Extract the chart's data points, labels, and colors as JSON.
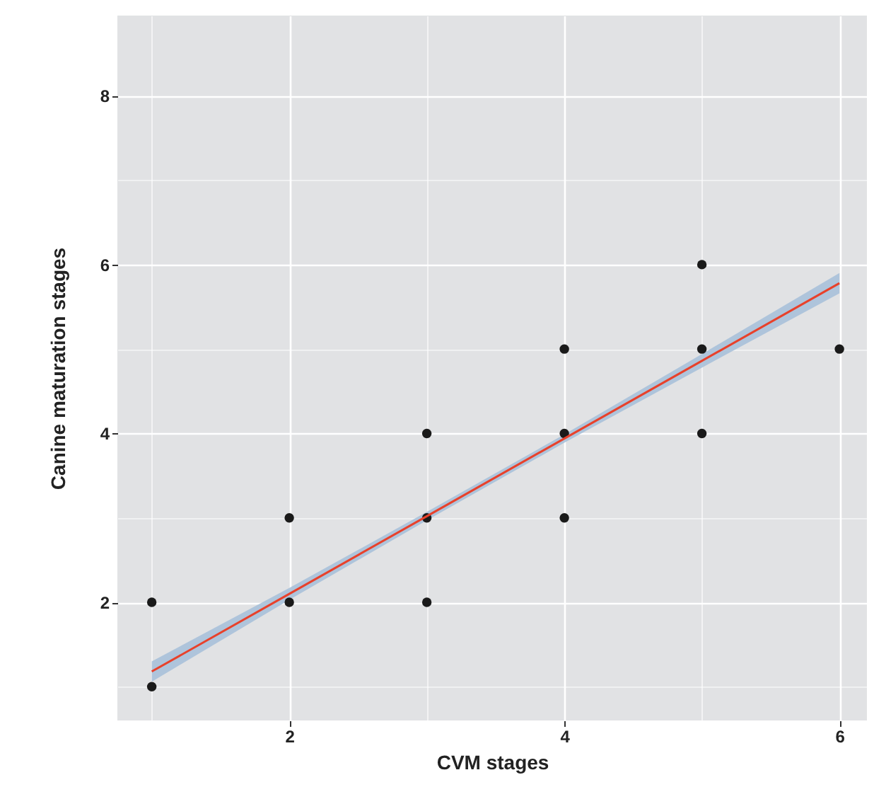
{
  "chart_data": {
    "type": "scatter",
    "xlabel": "CVM stages",
    "ylabel": "Canine maturation stages",
    "xlim": [
      0.75,
      6.2
    ],
    "ylim": [
      0.6,
      8.95
    ],
    "xticks": [
      {
        "value": 1,
        "label": null
      },
      2,
      {
        "value": 3,
        "label": null
      },
      4,
      {
        "value": 5,
        "label": null
      },
      6
    ],
    "yticks": [
      {
        "value": 1,
        "label": null
      },
      2,
      {
        "value": 3,
        "label": null
      },
      4,
      {
        "value": 5,
        "label": null
      },
      6,
      {
        "value": 7,
        "label": null
      },
      8
    ],
    "grid": true,
    "series": [
      {
        "marker": "circle",
        "color": "#1a1a1a",
        "x": [
          1,
          1,
          2,
          2,
          3,
          3,
          3,
          4,
          4,
          4,
          5,
          5,
          5,
          6
        ],
        "values": [
          1,
          2,
          2,
          3,
          2,
          3,
          4,
          3,
          4,
          5,
          4,
          5,
          6,
          5
        ]
      },
      {
        "type": "line",
        "color": "#e8412b",
        "x": [
          1,
          2,
          3,
          4,
          5,
          6
        ],
        "values": [
          1.18,
          2.1,
          3.02,
          3.94,
          4.86,
          5.78
        ],
        "lower": [
          1.06,
          2.03,
          2.97,
          3.89,
          4.78,
          5.66
        ],
        "upper": [
          1.3,
          2.17,
          3.07,
          3.99,
          4.94,
          5.9
        ]
      }
    ]
  }
}
